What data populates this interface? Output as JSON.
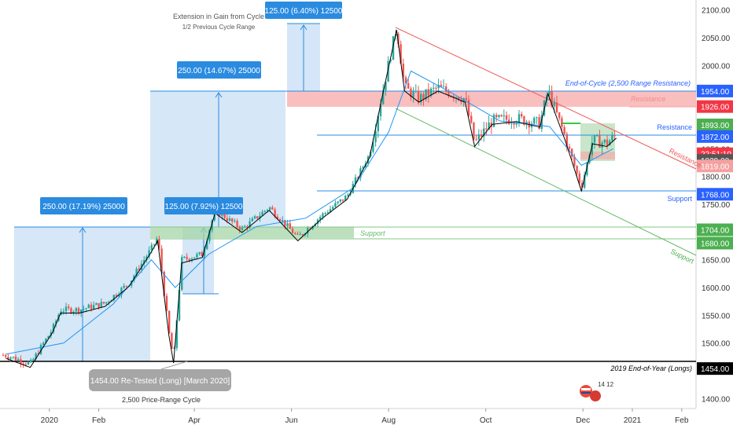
{
  "chart_data": {
    "type": "candlestick",
    "instrument_note": "Gold futures style price chart",
    "x_tick_labels": [
      "2020",
      "Feb",
      "Apr",
      "Jun",
      "Aug",
      "Oct",
      "Dec",
      "2021",
      "Feb"
    ],
    "y_tick_labels": [
      "1400.00",
      "1450.00",
      "1500.00",
      "1550.00",
      "1600.00",
      "1650.00",
      "1700.00",
      "1750.00",
      "1800.00",
      "1850.00",
      "1900.00",
      "1950.00",
      "2000.00",
      "2050.00",
      "2100.00"
    ],
    "ylim": [
      1382,
      2118
    ],
    "series": [
      {
        "role": "price",
        "x": [
          "2019-12-05",
          "2019-12-20",
          "2020-01-03",
          "2020-01-08",
          "2020-01-20",
          "2020-02-05",
          "2020-02-20",
          "2020-03-05",
          "2020-03-09",
          "2020-03-16",
          "2020-03-19",
          "2020-03-24",
          "2020-04-06",
          "2020-04-14",
          "2020-05-01",
          "2020-05-18",
          "2020-06-05",
          "2020-06-20",
          "2020-07-06",
          "2020-07-20",
          "2020-07-28",
          "2020-08-06",
          "2020-08-11",
          "2020-08-20",
          "2020-09-01",
          "2020-09-18",
          "2020-09-24",
          "2020-10-05",
          "2020-10-20",
          "2020-11-04",
          "2020-11-09",
          "2020-11-20",
          "2020-11-30",
          "2020-12-07",
          "2020-12-16",
          "2020-12-22"
        ],
        "y": [
          1478,
          1462,
          1525,
          1560,
          1560,
          1572,
          1608,
          1670,
          1690,
          1520,
          1470,
          1650,
          1660,
          1740,
          1705,
          1745,
          1690,
          1730,
          1765,
          1840,
          1950,
          2070,
          1960,
          1940,
          1960,
          1940,
          1860,
          1900,
          1905,
          1895,
          1955,
          1870,
          1780,
          1865,
          1860,
          1875
        ]
      },
      {
        "role": "moving-average",
        "x": [
          "2019-12-05",
          "2020-01-10",
          "2020-02-10",
          "2020-03-05",
          "2020-03-20",
          "2020-04-10",
          "2020-05-10",
          "2020-06-10",
          "2020-07-10",
          "2020-08-01",
          "2020-08-15",
          "2020-09-10",
          "2020-10-10",
          "2020-11-10",
          "2020-11-30",
          "2020-12-20"
        ],
        "y": [
          1480,
          1500,
          1570,
          1650,
          1600,
          1660,
          1710,
          1725,
          1780,
          1880,
          1990,
          1950,
          1900,
          1890,
          1820,
          1850
        ]
      }
    ],
    "levels": [
      {
        "price": 1954.0,
        "tag": "1954.00",
        "label": "End-of-Cycle (2,500 Range Resistance)",
        "color": "#2962ff"
      },
      {
        "price": 1926.0,
        "tag": "1926.00",
        "label": "Resistance",
        "color": "#f23645"
      },
      {
        "price": 1893.0,
        "tag": "1893.00",
        "label": "",
        "color": "#4caf50"
      },
      {
        "price": 1872.0,
        "tag": "1872.00",
        "label": "Resistance",
        "color": "#2962ff"
      },
      {
        "price": 1841.0,
        "tag": "22:51:10",
        "label": "",
        "color": "#f23645"
      },
      {
        "price": 1829.0,
        "tag": "1829.00",
        "label": "",
        "color": "#555555"
      },
      {
        "price": 1819.0,
        "tag": "1819.00",
        "label": "",
        "color": "#f5a0a0"
      },
      {
        "price": 1768.0,
        "tag": "1768.00",
        "label": "Support",
        "color": "#2962ff"
      },
      {
        "price": 1704.0,
        "tag": "1704.00",
        "label": "Support",
        "color": "#4caf50"
      },
      {
        "price": 1680.0,
        "tag": "1680.00",
        "label": "",
        "color": "#4caf50"
      },
      {
        "price": 1454.0,
        "tag": "1454.00",
        "label": "2019 End-of-Year (Longs)",
        "color": "#000000"
      }
    ],
    "channel_labels": {
      "upper": "Resistance",
      "lower": "Support"
    },
    "range_boxes": [
      {
        "label": "250.00 (17.19%) 25000",
        "from_price": 1454,
        "to_price": 1704
      },
      {
        "label": "125.00 (7.92%) 12500",
        "from_price": 1579,
        "to_price": 1704
      },
      {
        "label": "250.00 (14.67%) 25000",
        "from_price": 1704,
        "to_price": 1954
      },
      {
        "label": "125.00 (6.40%) 12500",
        "from_price": 1954,
        "to_price": 2079
      }
    ],
    "annotations": {
      "top_note_1": "Extension in Gain from Cycle",
      "top_note_2": "1/2 Previous Cycle Range",
      "retest_label": "1454.00 Re-Tested (Long) [March 2020]",
      "cycle_label": "2,500 Price-Range Cycle",
      "event_badge": "14 12"
    }
  },
  "colors": {
    "blue_box_fill": "#cfe3f6",
    "blue_label_bg": "#2a8be0",
    "green_zone": "#a5d6a7",
    "red_zone": "#f7a9a9",
    "up_candle": "#26a69a",
    "down_candle": "#ef5350"
  }
}
